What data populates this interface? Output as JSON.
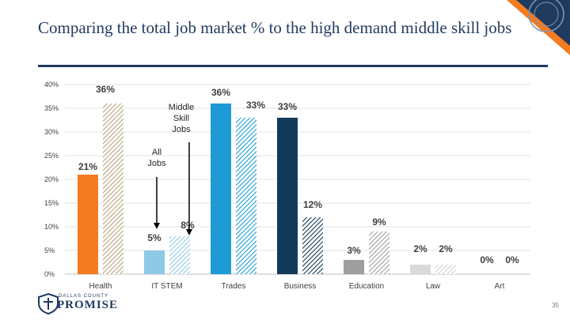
{
  "slide": {
    "title": "Comparing the total job market % to the high demand middle skill jobs",
    "page_number": "35",
    "logo_top": "DALLAS COUNTY",
    "logo_main": "PROMISE"
  },
  "colors": {
    "title": "#1f3a5f",
    "health": "#f47b20",
    "it_stem": "#8ecae6",
    "trades": "#1e9bd7",
    "business": "#143a5a",
    "education": "#9e9e9e",
    "law": "#d9d9d9",
    "art": "#eeeeee",
    "middle_skill_hatch": "#b8a37a",
    "corner_accent": "#f47b20",
    "corner_navy": "#1f3a5f"
  },
  "chart_data": {
    "type": "bar",
    "categories": [
      "Health",
      "IT STEM",
      "Trades",
      "Business",
      "Education",
      "Law",
      "Art"
    ],
    "series": [
      {
        "values": [
          21,
          5,
          36,
          33,
          3,
          2,
          0
        ]
      },
      {
        "values": [
          36,
          8,
          33,
          12,
          9,
          2,
          0
        ]
      }
    ],
    "data_labels": [
      [
        "21%",
        "5%",
        "36%",
        "33%",
        "3%",
        "2%",
        "0%"
      ],
      [
        "36%",
        "8%",
        "33%",
        "12%",
        "9%",
        "2%",
        "0%"
      ]
    ],
    "y_ticks": [
      "0%",
      "5%",
      "10%",
      "15%",
      "20%",
      "25%",
      "30%",
      "35%",
      "40%"
    ],
    "ylim": [
      0,
      40
    ],
    "grid": true,
    "annotations": [
      {
        "text_lines": [
          "Middle",
          "Skill",
          "Jobs"
        ],
        "target": "IT STEM series 2"
      },
      {
        "text_lines": [
          "All",
          "Jobs"
        ],
        "target": "IT STEM series 1"
      }
    ]
  }
}
